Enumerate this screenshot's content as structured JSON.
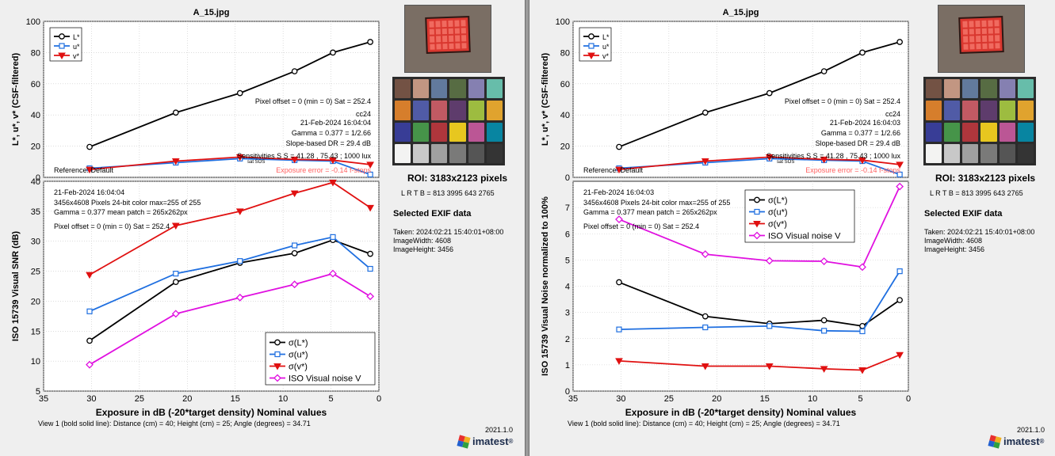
{
  "colors": {
    "L": "#000000",
    "u": "#1f6fe0",
    "v": "#e01010",
    "iso": "#e010e0",
    "exposure_error": "#ff6060"
  },
  "color_checker": [
    "#735244",
    "#c29682",
    "#627a9d",
    "#576c43",
    "#8580b1",
    "#67bdaa",
    "#d67e2c",
    "#505ba6",
    "#c15a63",
    "#5e3c6c",
    "#9dbc40",
    "#e0a32e",
    "#383d96",
    "#469449",
    "#af363c",
    "#e7c71f",
    "#bb5695",
    "#0885a1",
    "#f3f3f2",
    "#c8c8c8",
    "#a0a0a0",
    "#7a7a79",
    "#555555",
    "#343434"
  ],
  "panels": [
    {
      "id": "left",
      "title": "A_15.jpg",
      "top_chart": {
        "type": "line",
        "ylabel": "L*, u*, v* (CSF-filtered)",
        "ylim": [
          0,
          100
        ],
        "yticks": [
          "0",
          "20",
          "40",
          "60",
          "80",
          "100"
        ],
        "xlim": [
          35,
          0
        ],
        "x": [
          30.2,
          21.2,
          14.5,
          8.8,
          4.8,
          0.9
        ],
        "series": [
          {
            "name": "L*",
            "values": [
              19.5,
              41.5,
              54.0,
              68.0,
              80.0,
              86.8
            ]
          },
          {
            "name": "u*",
            "values": [
              5.8,
              9.4,
              12.0,
              11.0,
              10.4,
              1.8
            ]
          },
          {
            "name": "v*",
            "values": [
              5.0,
              10.4,
              13.0,
              11.5,
              11.0,
              8.2
            ]
          }
        ],
        "legend": [
          "L*",
          "u*",
          "v*"
        ],
        "annotations": {
          "pixel_offset": "Pixel offset = 0  (min = 0)  Sat = 252.4",
          "target": "cc24",
          "date": "21-Feb-2024 16:04:04",
          "gamma": "Gamma = 0.377 = 1/2.66",
          "slope_dr": "Slope-based DR = 29.4 dB",
          "sensitivities": "Sensitivities S    S      = 41.28 , 75.43 ;  1000 lux",
          "sensitivities_sub": "sat    SOS",
          "reference": "Reference: Default",
          "exposure_error": "Exposure error = -0.14 f-stops"
        }
      },
      "bottom_chart": {
        "type": "line",
        "ylabel": "ISO 15739 Visual SNR (dB)",
        "xlabel": "Exposure in dB (-20*target density)   Nominal values",
        "ylim": [
          5,
          40
        ],
        "yticks": [
          "5",
          "10",
          "15",
          "20",
          "25",
          "30",
          "35",
          "40"
        ],
        "xlim": [
          35,
          0
        ],
        "xticks": [
          "35",
          "30",
          "25",
          "20",
          "15",
          "10",
          "5",
          "0"
        ],
        "x": [
          30.2,
          21.2,
          14.5,
          8.8,
          4.8,
          0.9
        ],
        "series": [
          {
            "name": "σ(L*)",
            "values": [
              13.4,
              23.2,
              26.4,
              28.0,
              30.2,
              27.9
            ]
          },
          {
            "name": "σ(u*)",
            "values": [
              18.3,
              24.6,
              26.7,
              29.3,
              30.7,
              25.4
            ]
          },
          {
            "name": "σ(v*)",
            "values": [
              24.4,
              32.6,
              35.0,
              38.0,
              39.8,
              35.6
            ]
          },
          {
            "name": "ISO Visual noise V",
            "values": [
              9.4,
              17.9,
              20.6,
              22.8,
              24.6,
              20.8
            ]
          }
        ],
        "legend": [
          "σ(L*)",
          "σ(u*)",
          "σ(v*)",
          "ISO Visual noise V"
        ],
        "info": {
          "date": "21-Feb-2024 16:04:04",
          "pixels": "3456x4608 Pixels   24-bit color   max=255 of 255",
          "gamma": "Gamma = 0.377   mean patch = 265x262px",
          "pixel_offset": "Pixel offset = 0  (min = 0)  Sat = 252.4"
        },
        "view_info": "View 1 (bold solid line):            Distance (cm) = 40;  Height (cm) = 25;  Angle (degrees) = 34.71"
      },
      "roi": "ROI:  3183x2123 pixels",
      "lrtb": "L R  T B = 813 3995  643 2765",
      "exif_title": "Selected EXIF data",
      "exif": [
        "Taken: 2024:02:21 15:40:01+08:00",
        "ImageWidth:  4608",
        "ImageHeight:  3456"
      ],
      "version": "2021.1.0",
      "logo": "imatest",
      "logo_mark": "®"
    },
    {
      "id": "right",
      "title": "A_15.jpg",
      "top_chart": {
        "type": "line",
        "ylabel": "L*, u*, v* (CSF-filtered)",
        "ylim": [
          0,
          100
        ],
        "yticks": [
          "0",
          "20",
          "40",
          "60",
          "80",
          "100"
        ],
        "xlim": [
          35,
          0
        ],
        "x": [
          30.2,
          21.2,
          14.5,
          8.8,
          4.8,
          0.9
        ],
        "series": [
          {
            "name": "L*",
            "values": [
              19.5,
              41.5,
              54.0,
              68.0,
              80.0,
              86.8
            ]
          },
          {
            "name": "u*",
            "values": [
              5.8,
              9.4,
              12.0,
              11.0,
              10.4,
              1.8
            ]
          },
          {
            "name": "v*",
            "values": [
              5.0,
              10.4,
              13.0,
              11.5,
              11.0,
              8.2
            ]
          }
        ],
        "legend": [
          "L*",
          "u*",
          "v*"
        ],
        "annotations": {
          "pixel_offset": "Pixel offset = 0  (min = 0)  Sat = 252.4",
          "target": "cc24",
          "date": "21-Feb-2024 16:04:03",
          "gamma": "Gamma = 0.377 = 1/2.66",
          "slope_dr": "Slope-based DR = 29.4 dB",
          "sensitivities": "Sensitivities S    S      = 41.28 , 75.43 ;  1000 lux",
          "sensitivities_sub": "sat    SOS",
          "reference": "Reference: Default",
          "exposure_error": "Exposure error = -0.14 f-stops"
        }
      },
      "bottom_chart": {
        "type": "line",
        "ylabel": "ISO 15739 Visual Noise  normalized to 100%",
        "xlabel": "Exposure in dB (-20*target density)   Nominal values",
        "ylim": [
          0,
          8
        ],
        "yticks": [
          "0",
          "1",
          "2",
          "3",
          "4",
          "5",
          "6",
          "7"
        ],
        "xlim": [
          35,
          0
        ],
        "xticks": [
          "35",
          "30",
          "25",
          "20",
          "15",
          "10",
          "5",
          "0"
        ],
        "x": [
          30.2,
          21.2,
          14.5,
          8.8,
          4.8,
          0.9
        ],
        "series": [
          {
            "name": "σ(L*)",
            "values": [
              4.15,
              2.85,
              2.57,
              2.7,
              2.48,
              3.47
            ]
          },
          {
            "name": "σ(u*)",
            "values": [
              2.35,
              2.43,
              2.48,
              2.3,
              2.28,
              4.57
            ]
          },
          {
            "name": "σ(v*)",
            "values": [
              1.15,
              0.95,
              0.95,
              0.85,
              0.8,
              1.38
            ]
          },
          {
            "name": "ISO Visual noise V",
            "values": [
              6.55,
              5.22,
              4.97,
              4.95,
              4.73,
              7.8
            ]
          }
        ],
        "legend": [
          "σ(L*)",
          "σ(u*)",
          "σ(v*)",
          "ISO Visual noise V"
        ],
        "info": {
          "date": "21-Feb-2024 16:04:03",
          "pixels": "3456x4608 Pixels   24-bit color   max=255 of 255",
          "gamma": "Gamma = 0.377   mean patch = 265x262px",
          "pixel_offset": "Pixel offset = 0  (min = 0)  Sat = 252.4"
        },
        "view_info": "View 1 (bold solid line):            Distance (cm) = 40;  Height (cm) = 25;  Angle (degrees) = 34.71"
      },
      "roi": "ROI:  3183x2123 pixels",
      "lrtb": "L R  T B = 813 3995  643 2765",
      "exif_title": "Selected EXIF data",
      "exif": [
        "Taken: 2024:02:21 15:40:01+08:00",
        "ImageWidth:  4608",
        "ImageHeight:  3456"
      ],
      "version": "2021.1.0",
      "logo": "imatest",
      "logo_mark": "®"
    }
  ],
  "chart_data": [
    {
      "type": "line",
      "title": "A_15.jpg",
      "ylabel": "L*, u*, v* (CSF-filtered)",
      "ylim": [
        0,
        100
      ],
      "xlim": [
        35,
        0
      ],
      "x": [
        30.2,
        21.2,
        14.5,
        8.8,
        4.8,
        0.9
      ],
      "series": [
        {
          "name": "L*",
          "values": [
            19.5,
            41.5,
            54.0,
            68.0,
            80.0,
            86.8
          ]
        },
        {
          "name": "u*",
          "values": [
            5.8,
            9.4,
            12.0,
            11.0,
            10.4,
            1.8
          ]
        },
        {
          "name": "v*",
          "values": [
            5.0,
            10.4,
            13.0,
            11.5,
            11.0,
            8.2
          ]
        }
      ]
    },
    {
      "type": "line",
      "ylabel": "ISO 15739 Visual SNR (dB)",
      "xlabel": "Exposure in dB (-20*target density)   Nominal values",
      "ylim": [
        5,
        40
      ],
      "xlim": [
        35,
        0
      ],
      "x": [
        30.2,
        21.2,
        14.5,
        8.8,
        4.8,
        0.9
      ],
      "series": [
        {
          "name": "σ(L*)",
          "values": [
            13.4,
            23.2,
            26.4,
            28.0,
            30.2,
            27.9
          ]
        },
        {
          "name": "σ(u*)",
          "values": [
            18.3,
            24.6,
            26.7,
            29.3,
            30.7,
            25.4
          ]
        },
        {
          "name": "σ(v*)",
          "values": [
            24.4,
            32.6,
            35.0,
            38.0,
            39.8,
            35.6
          ]
        },
        {
          "name": "ISO Visual noise V",
          "values": [
            9.4,
            17.9,
            20.6,
            22.8,
            24.6,
            20.8
          ]
        }
      ]
    },
    {
      "type": "line",
      "title": "A_15.jpg",
      "ylabel": "L*, u*, v* (CSF-filtered)",
      "ylim": [
        0,
        100
      ],
      "xlim": [
        35,
        0
      ],
      "x": [
        30.2,
        21.2,
        14.5,
        8.8,
        4.8,
        0.9
      ],
      "series": [
        {
          "name": "L*",
          "values": [
            19.5,
            41.5,
            54.0,
            68.0,
            80.0,
            86.8
          ]
        },
        {
          "name": "u*",
          "values": [
            5.8,
            9.4,
            12.0,
            11.0,
            10.4,
            1.8
          ]
        },
        {
          "name": "v*",
          "values": [
            5.0,
            10.4,
            13.0,
            11.5,
            11.0,
            8.2
          ]
        }
      ]
    },
    {
      "type": "line",
      "ylabel": "ISO 15739 Visual Noise  normalized to 100%",
      "xlabel": "Exposure in dB (-20*target density)   Nominal values",
      "ylim": [
        0,
        8
      ],
      "xlim": [
        35,
        0
      ],
      "x": [
        30.2,
        21.2,
        14.5,
        8.8,
        4.8,
        0.9
      ],
      "series": [
        {
          "name": "σ(L*)",
          "values": [
            4.15,
            2.85,
            2.57,
            2.7,
            2.48,
            3.47
          ]
        },
        {
          "name": "σ(u*)",
          "values": [
            2.35,
            2.43,
            2.48,
            2.3,
            2.28,
            4.57
          ]
        },
        {
          "name": "σ(v*)",
          "values": [
            1.15,
            0.95,
            0.95,
            0.85,
            0.8,
            1.38
          ]
        },
        {
          "name": "ISO Visual noise V",
          "values": [
            6.55,
            5.22,
            4.97,
            4.95,
            4.73,
            7.8
          ]
        }
      ]
    }
  ]
}
